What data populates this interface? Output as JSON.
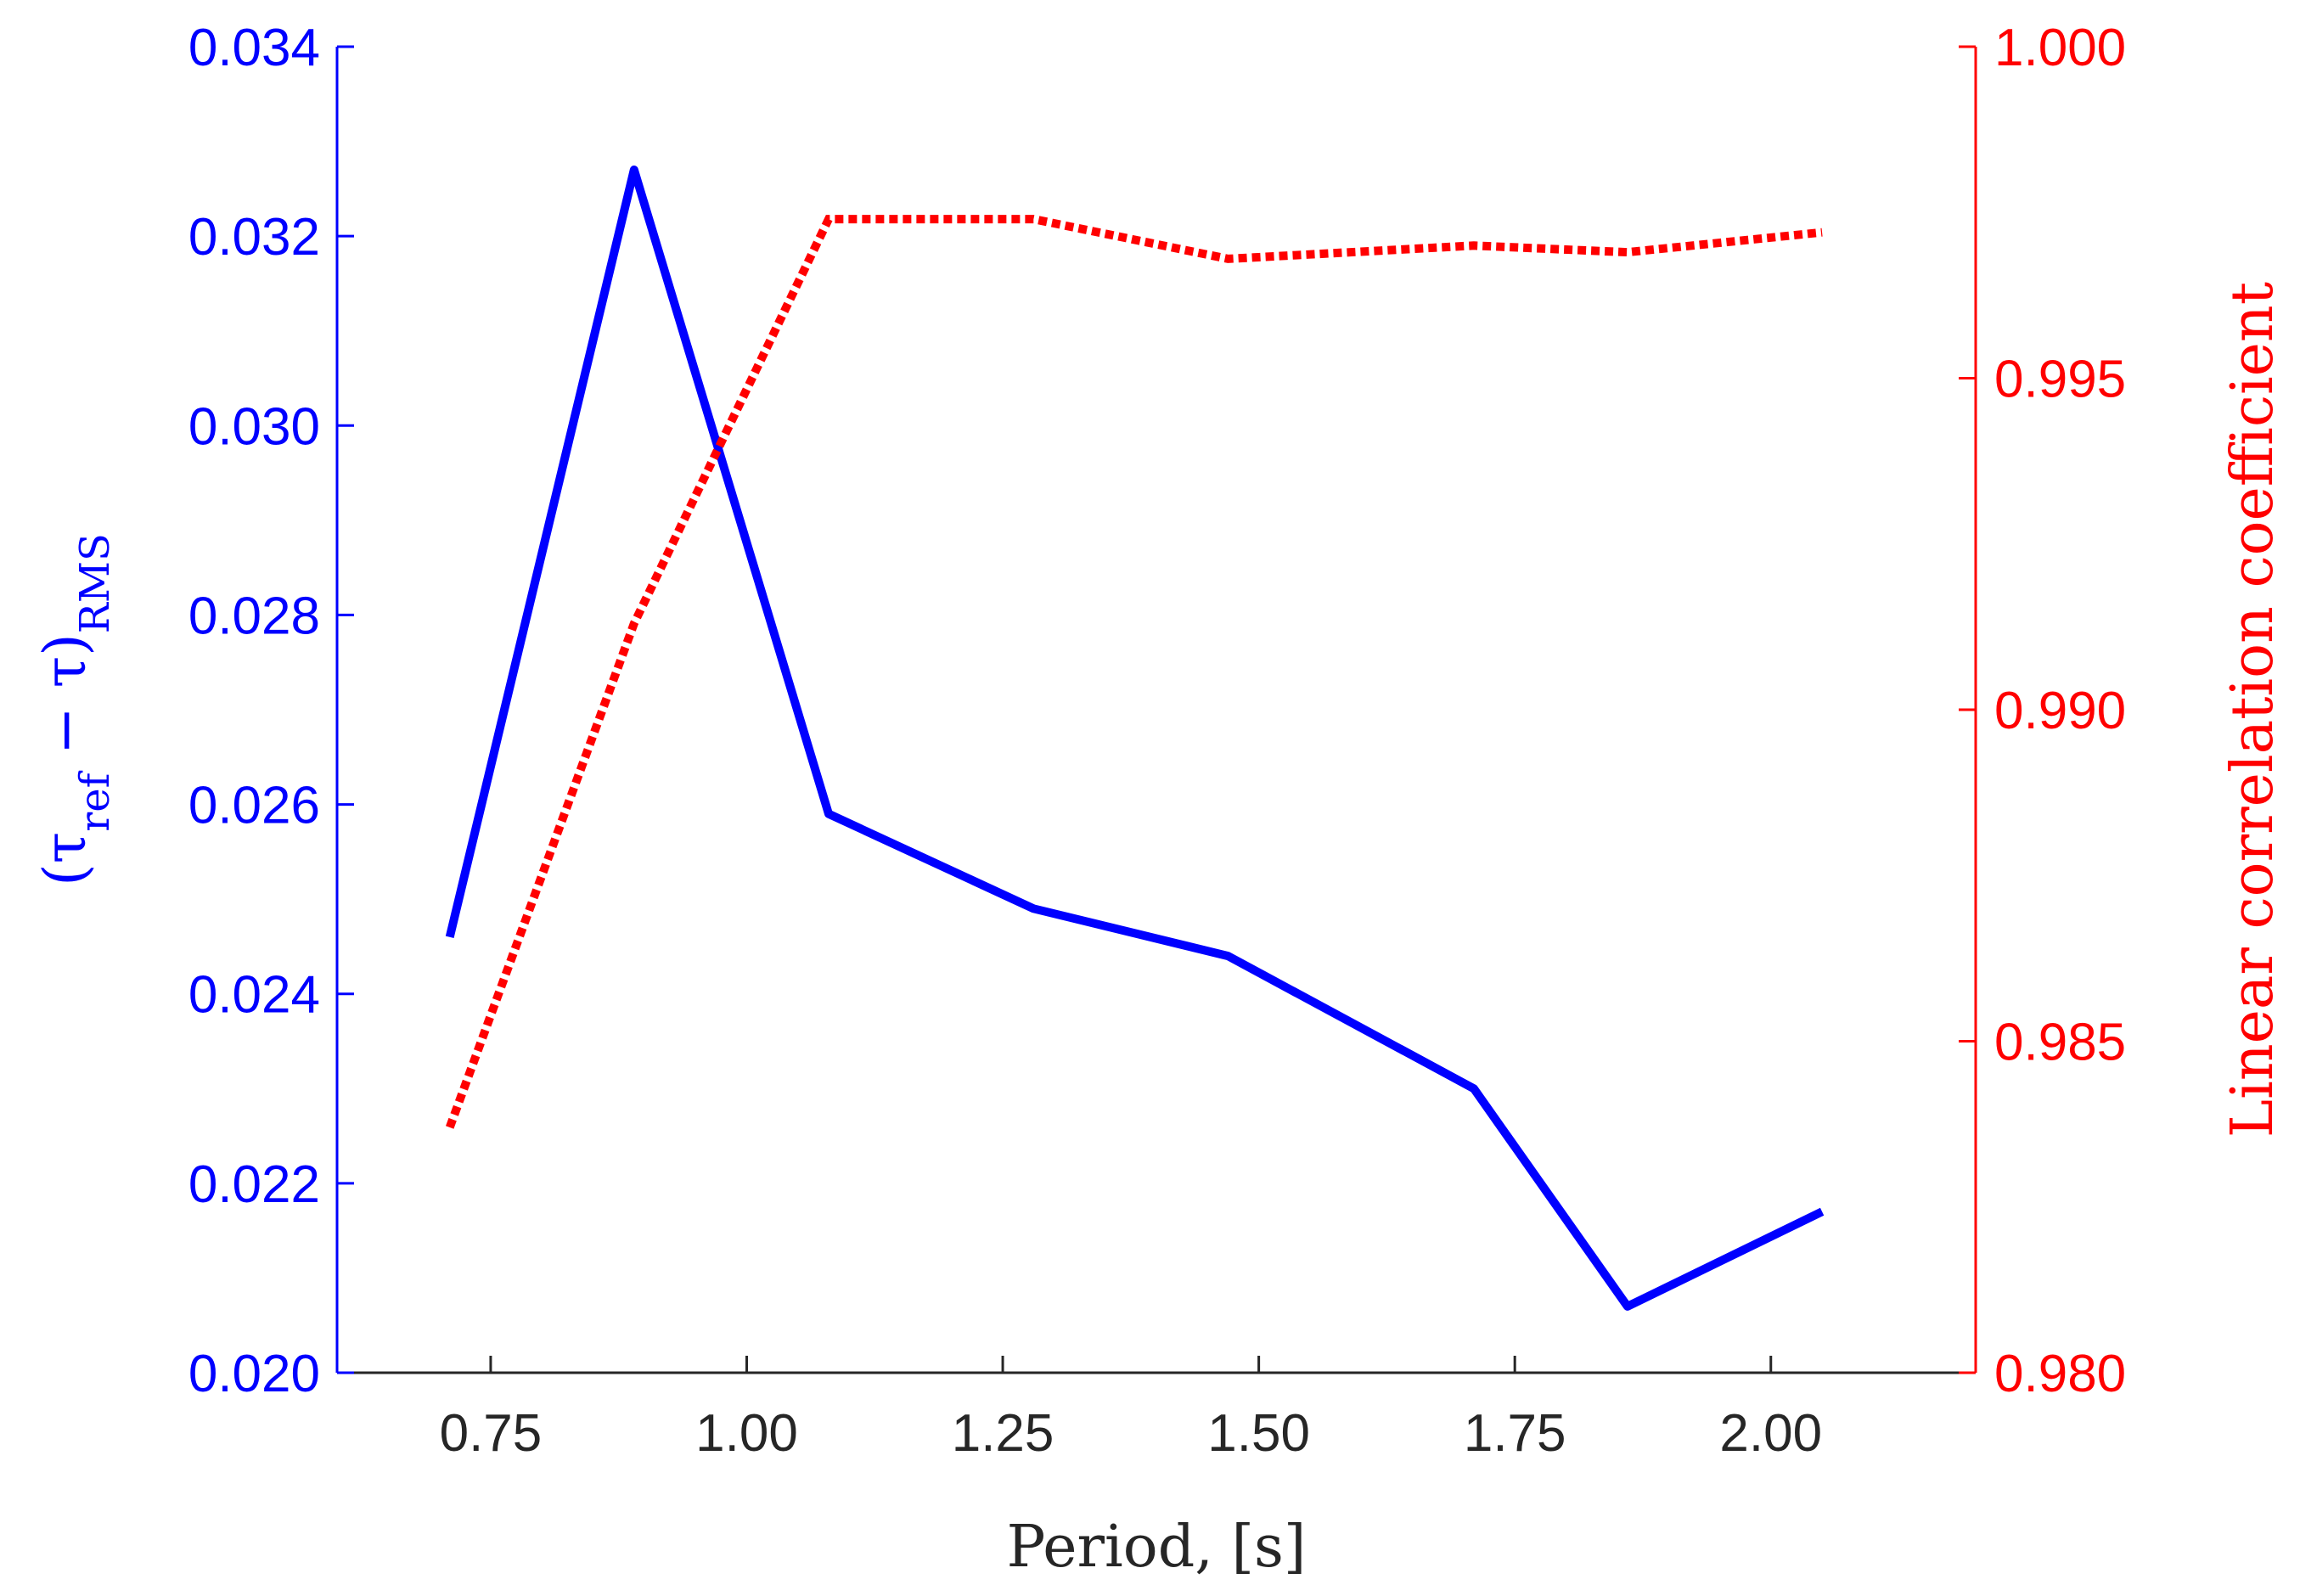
{
  "chart_data": {
    "type": "line",
    "xlabel": "Period, [s]",
    "ylabel_left": "(τ_ref − τ)_RMS",
    "ylabel_left_parts": {
      "open": "(τ",
      "sub1": "ref",
      "mid": " − τ)",
      "sub2": "RMS"
    },
    "ylabel_right": "Linear correlation coefficient",
    "xlim": [
      0.6,
      2.2
    ],
    "xticks": [
      0.75,
      1.0,
      1.25,
      1.5,
      1.75,
      2.0
    ],
    "xtick_labels": [
      "0.75",
      "1.00",
      "1.25",
      "1.50",
      "1.75",
      "2.00"
    ],
    "ylim_left": [
      0.02,
      0.034
    ],
    "yticks_left": [
      0.02,
      0.022,
      0.024,
      0.026,
      0.028,
      0.03,
      0.032,
      0.034
    ],
    "ytick_labels_left": [
      "0.020",
      "0.022",
      "0.024",
      "0.026",
      "0.028",
      "0.030",
      "0.032",
      "0.034"
    ],
    "ylim_right": [
      0.98,
      1.0
    ],
    "yticks_right": [
      0.98,
      0.985,
      0.99,
      0.995,
      1.0
    ],
    "ytick_labels_right": [
      "0.980",
      "0.985",
      "0.990",
      "0.995",
      "1.000"
    ],
    "grid": false,
    "x": [
      0.71,
      0.89,
      1.08,
      1.28,
      1.47,
      1.71,
      1.86,
      2.05
    ],
    "series": [
      {
        "axis": "left",
        "style": "solid",
        "color": "#0000ff",
        "values": [
          0.0246,
          0.0327,
          0.0259,
          0.0249,
          0.0244,
          0.023,
          0.0207,
          0.0217
        ]
      },
      {
        "axis": "right",
        "style": "dotted",
        "color": "#ff0000",
        "values": [
          0.9837,
          0.9913,
          0.9974,
          0.9974,
          0.9968,
          0.997,
          0.9969,
          0.9972
        ]
      }
    ],
    "colors": {
      "left_axis": "#0000ff",
      "right_axis": "#ff0000",
      "x_axis": "#262626"
    }
  }
}
